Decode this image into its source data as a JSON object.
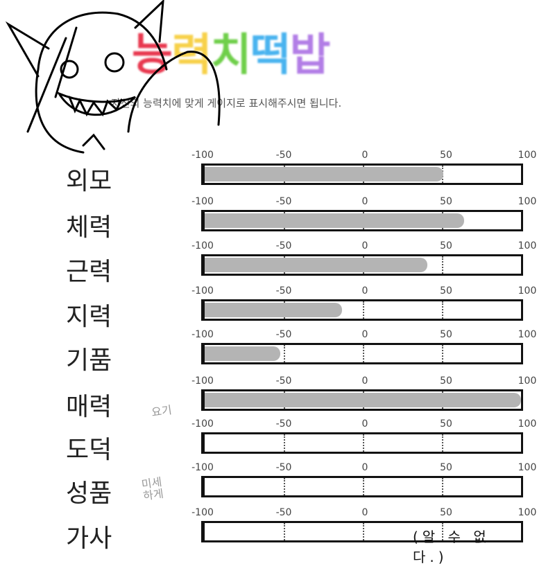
{
  "title": {
    "chars": [
      "능",
      "력",
      "치",
      "떡",
      "밥"
    ],
    "colors": [
      "#e8384f",
      "#f7d14a",
      "#6fcf4a",
      "#49b3ef",
      "#b27de6"
    ]
  },
  "subtitle": "자신의 능력치에 맞게 게이지로 표시해주시면 됩니다.",
  "scale": {
    "ticks": [
      "-100",
      "-50",
      "0",
      "50",
      "100"
    ],
    "min": -100,
    "max": 100
  },
  "stats": [
    {
      "label": "외모",
      "value": 51
    },
    {
      "label": "체력",
      "value": 64
    },
    {
      "label": "근력",
      "value": 41
    },
    {
      "label": "지력",
      "value": -13
    },
    {
      "label": "기품",
      "value": -52
    },
    {
      "label": "매력",
      "value": 100
    },
    {
      "label": "도덕",
      "value": -100
    },
    {
      "label": "성품",
      "value": -100
    },
    {
      "label": "가사",
      "value": null
    }
  ],
  "annotations": {
    "morality_note": "요기",
    "character_note": "미세하게",
    "housework_note": "(알 수 없다.)"
  }
}
